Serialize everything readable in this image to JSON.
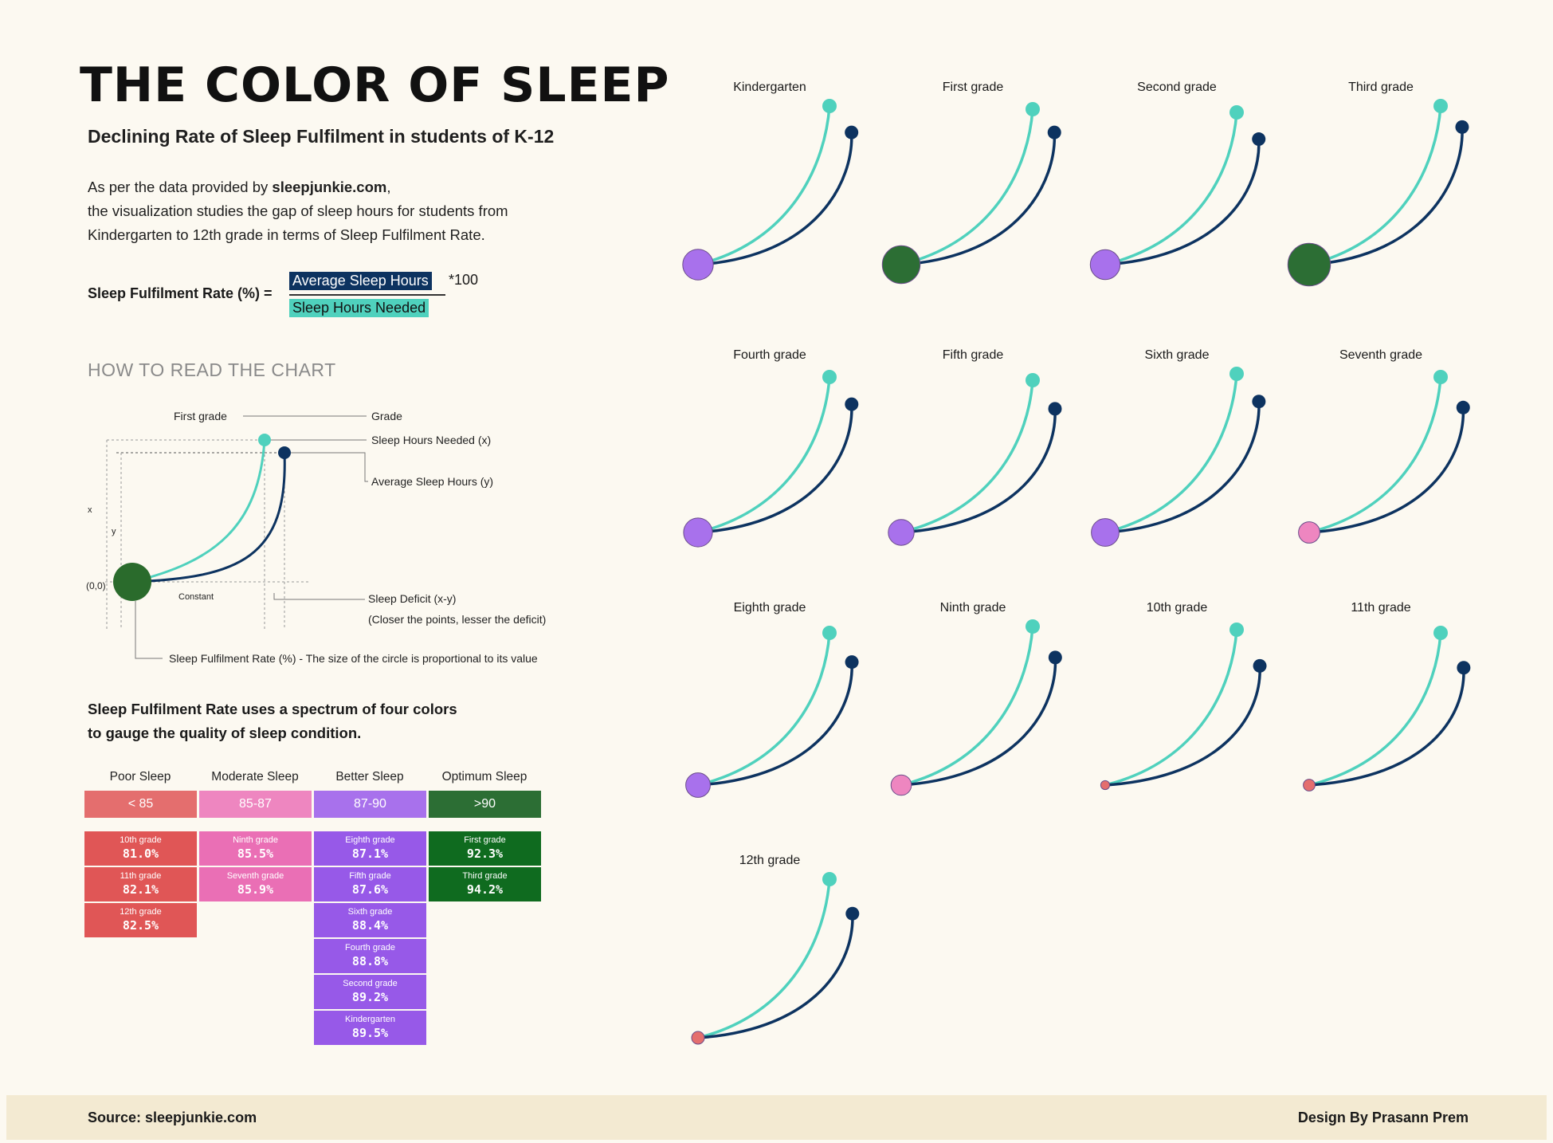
{
  "header": {
    "title": "THE COLOR OF SLEEP",
    "subtitle": "Declining Rate of Sleep Fulfilment in students of K-12"
  },
  "intro": {
    "line1_prefix": "As per the data provided by ",
    "source_brand": "sleepjunkie.com",
    "line1_suffix": ",",
    "line2": "the visualization studies the gap of sleep hours for students from",
    "line3": "Kindergarten to 12th grade in terms of Sleep Fulfilment Rate."
  },
  "formula": {
    "label": "Sleep Fulfilment Rate (%) =",
    "numerator": "Average Sleep Hours",
    "denominator": "Sleep Hours Needed",
    "multiplier": "*100"
  },
  "how_to_read": {
    "heading": "HOW TO READ THE CHART",
    "example_grade": "First grade",
    "grade_label": "Grade",
    "needed_label": "Sleep Hours Needed (x)",
    "average_label": "Average Sleep Hours (y)",
    "x_axis_mark": "x",
    "y_axis_mark": "y",
    "origin_label": "(0,0)",
    "constant_label": "Constant",
    "deficit_label": "Sleep Deficit (x-y)",
    "deficit_note": "(Closer the points, lesser the deficit)",
    "rate_label": "Sleep Fulfilment Rate (%) - The size of the circle is proportional to its value"
  },
  "spectrum": {
    "line1": "Sleep Fulfilment Rate uses a spectrum of four colors",
    "line2": "to gauge the quality of sleep condition.",
    "categories": [
      {
        "name": "Poor Sleep",
        "range": "< 85",
        "header_color": "#e46e6e",
        "cell_color": "#e05656"
      },
      {
        "name": "Moderate Sleep",
        "range": "85-87",
        "header_color": "#ee86c0",
        "cell_color": "#ea6fb5"
      },
      {
        "name": "Better Sleep",
        "range": "87-90",
        "header_color": "#a871ec",
        "cell_color": "#9759e8"
      },
      {
        "name": "Optimum Sleep",
        "range": ">90",
        "header_color": "#2c6e34",
        "cell_color": "#0f6b1f"
      }
    ],
    "columns": [
      [
        {
          "grade": "10th grade",
          "value": "81.0%"
        },
        {
          "grade": "11th grade",
          "value": "82.1%"
        },
        {
          "grade": "12th grade",
          "value": "82.5%"
        }
      ],
      [
        {
          "grade": "Ninth grade",
          "value": "85.5%"
        },
        {
          "grade": "Seventh grade",
          "value": "85.9%"
        }
      ],
      [
        {
          "grade": "Eighth grade",
          "value": "87.1%"
        },
        {
          "grade": "Fifth grade",
          "value": "87.6%"
        },
        {
          "grade": "Sixth grade",
          "value": "88.4%"
        },
        {
          "grade": "Fourth grade",
          "value": "88.8%"
        },
        {
          "grade": "Second grade",
          "value": "89.2%"
        },
        {
          "grade": "Kindergarten",
          "value": "89.5%"
        }
      ],
      [
        {
          "grade": "First grade",
          "value": "92.3%"
        },
        {
          "grade": "Third grade",
          "value": "94.2%"
        }
      ]
    ]
  },
  "colors": {
    "needed_line": "#4fd1bd",
    "average_line": "#0d3360",
    "background": "#fcf9f1"
  },
  "chart_data": {
    "type": "scatter",
    "title": "THE COLOR OF SLEEP",
    "series": [
      {
        "name": "Sleep Hours Needed (x)",
        "categories": "grades"
      },
      {
        "name": "Average Sleep Hours (y)",
        "categories": "grades"
      }
    ],
    "categories": [
      "Kindergarten",
      "First grade",
      "Second grade",
      "Third grade",
      "Fourth grade",
      "Fifth grade",
      "Sixth grade",
      "Seventh grade",
      "Eighth grade",
      "Ninth grade",
      "10th grade",
      "11th grade",
      "12th grade"
    ],
    "sleep_fulfilment_rate": [
      89.5,
      92.3,
      89.2,
      94.2,
      88.8,
      87.6,
      88.4,
      85.9,
      87.1,
      85.5,
      81.0,
      82.1,
      82.5
    ],
    "rate_category": [
      "Better Sleep",
      "Optimum Sleep",
      "Better Sleep",
      "Optimum Sleep",
      "Better Sleep",
      "Better Sleep",
      "Better Sleep",
      "Moderate Sleep",
      "Better Sleep",
      "Moderate Sleep",
      "Poor Sleep",
      "Poor Sleep",
      "Poor Sleep"
    ]
  },
  "footer": {
    "source": "Source: sleepjunkie.com",
    "credit": "Design By Prasann Prem"
  }
}
